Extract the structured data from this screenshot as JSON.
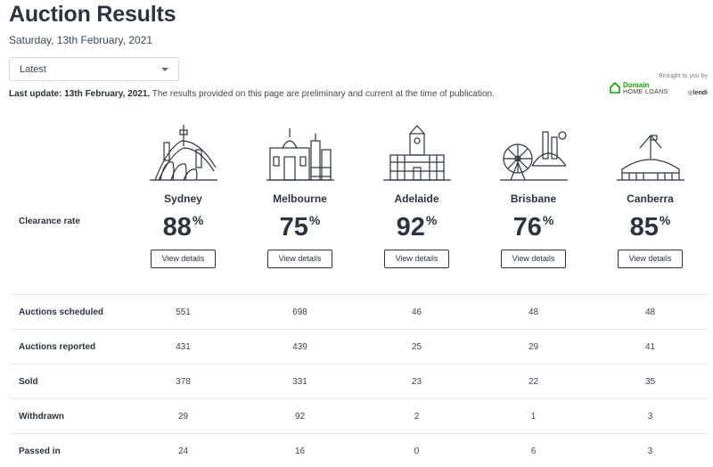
{
  "header": {
    "title": "Auction Results",
    "date": "Saturday, 13th February, 2021"
  },
  "filter": {
    "selected": "Latest"
  },
  "update": {
    "bold": "Last update: 13th February, 2021.",
    "text": " The results provided on this page are preliminary and current at the time of publication."
  },
  "brand": {
    "brought_by": "Brought to you by",
    "domain_line1": "Domain",
    "domain_line2": "HOME LOANS",
    "lendi": "lendi",
    "domain_color": "#0ea800"
  },
  "clearance": {
    "label": "Clearance rate",
    "percent_symbol": "%",
    "button_label": "View details"
  },
  "cities": [
    {
      "name": "Sydney",
      "rate": "88",
      "icon": "sydney-skyline-icon"
    },
    {
      "name": "Melbourne",
      "rate": "75",
      "icon": "melbourne-skyline-icon"
    },
    {
      "name": "Adelaide",
      "rate": "92",
      "icon": "adelaide-townhall-icon"
    },
    {
      "name": "Brisbane",
      "rate": "76",
      "icon": "brisbane-wheel-bridge-icon"
    },
    {
      "name": "Canberra",
      "rate": "85",
      "icon": "canberra-parliament-icon"
    }
  ],
  "table": {
    "rows": [
      {
        "label": "Auctions scheduled",
        "values": [
          "551",
          "698",
          "46",
          "48",
          "48"
        ]
      },
      {
        "label": "Auctions reported",
        "values": [
          "431",
          "439",
          "25",
          "29",
          "41"
        ]
      },
      {
        "label": "Sold",
        "values": [
          "378",
          "331",
          "23",
          "22",
          "35"
        ]
      },
      {
        "label": "Withdrawn",
        "values": [
          "29",
          "92",
          "2",
          "1",
          "3"
        ]
      },
      {
        "label": "Passed in",
        "values": [
          "24",
          "16",
          "0",
          "6",
          "3"
        ]
      }
    ]
  }
}
